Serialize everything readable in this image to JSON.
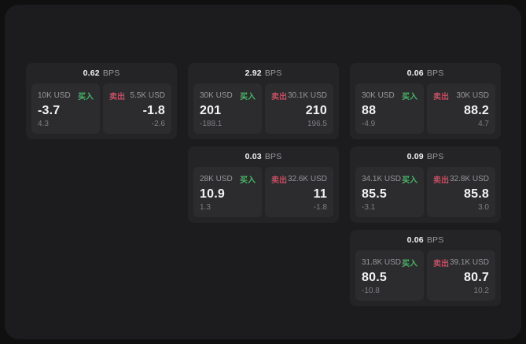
{
  "labels": {
    "bps_unit": "BPS",
    "buy": "买入",
    "sell": "卖出"
  },
  "colors": {
    "backdrop": "#101011",
    "surface": "#1c1c1e",
    "card": "#242426",
    "panel": "#2c2c2e",
    "buy": "#4db36a",
    "sell": "#c44d62",
    "value_text": "#f3f3f4",
    "muted_text": "#97979c"
  },
  "cards": [
    {
      "bps": "0.62",
      "buy": {
        "amount": "10K USD",
        "value": "-3.7",
        "sub": "4.3"
      },
      "sell": {
        "amount": "5.5K USD",
        "value": "-1.8",
        "sub": "-2.6"
      }
    },
    {
      "bps": "2.92",
      "buy": {
        "amount": "30K USD",
        "value": "201",
        "sub": "-188.1"
      },
      "sell": {
        "amount": "30.1K USD",
        "value": "210",
        "sub": "196.5"
      }
    },
    {
      "bps": "0.06",
      "buy": {
        "amount": "30K USD",
        "value": "88",
        "sub": "-4.9"
      },
      "sell": {
        "amount": "30K USD",
        "value": "88.2",
        "sub": "4.7"
      }
    },
    {
      "bps": "0.03",
      "buy": {
        "amount": "28K USD",
        "value": "10.9",
        "sub": "1.3"
      },
      "sell": {
        "amount": "32.6K USD",
        "value": "11",
        "sub": "-1.8"
      }
    },
    {
      "bps": "0.09",
      "buy": {
        "amount": "34.1K USD",
        "value": "85.5",
        "sub": "-3.1"
      },
      "sell": {
        "amount": "32.8K USD",
        "value": "85.8",
        "sub": "3.0"
      }
    },
    {
      "bps": "0.06",
      "buy": {
        "amount": "31.8K USD",
        "value": "80.5",
        "sub": "-10.8"
      },
      "sell": {
        "amount": "39.1K USD",
        "value": "80.7",
        "sub": "10.2"
      }
    }
  ]
}
